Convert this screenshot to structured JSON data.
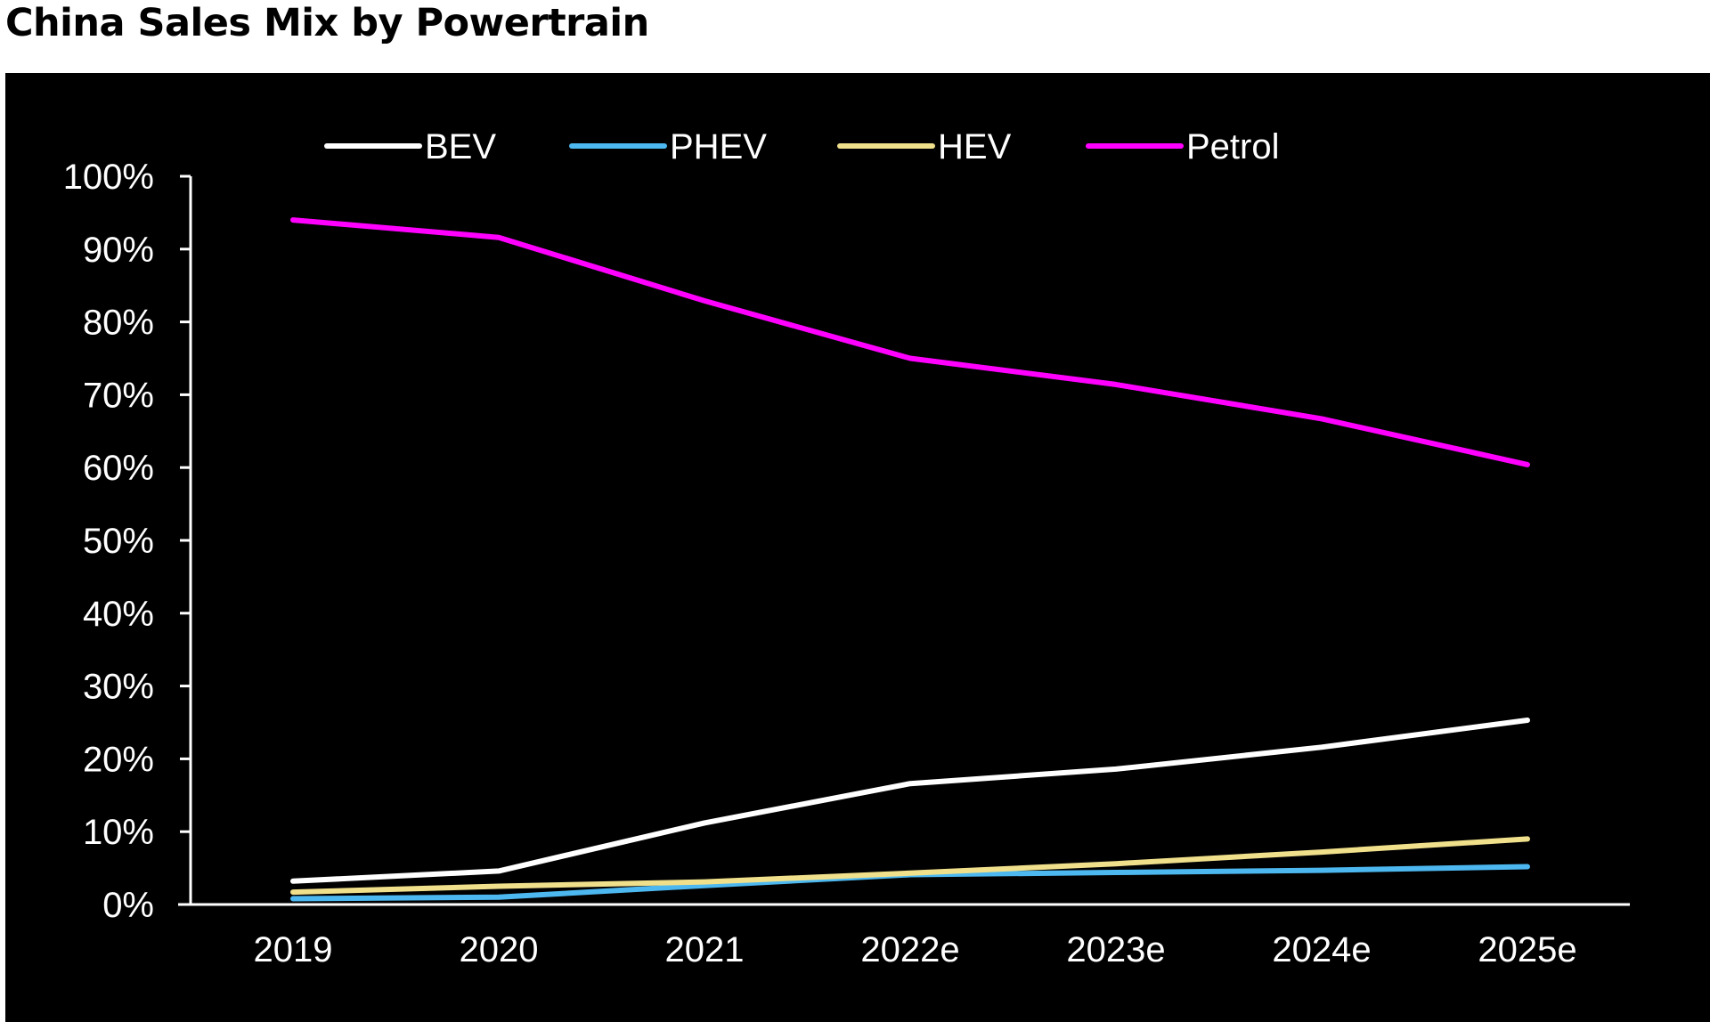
{
  "title": "China Sales Mix by Powertrain",
  "chart_data": {
    "type": "line",
    "title": "China Sales Mix by Powertrain",
    "xlabel": "",
    "ylabel": "",
    "categories": [
      "2019",
      "2020",
      "2021",
      "2022e",
      "2023e",
      "2024e",
      "2025e"
    ],
    "ylim": [
      0,
      100
    ],
    "y_ticks": [
      "0%",
      "10%",
      "20%",
      "30%",
      "40%",
      "50%",
      "60%",
      "70%",
      "80%",
      "90%",
      "100%"
    ],
    "grid": false,
    "legend_position": "top",
    "background": "#000000",
    "series": [
      {
        "name": "BEV",
        "color": "#ffffff",
        "values": [
          3.2,
          4.6,
          11.2,
          16.6,
          18.6,
          21.6,
          25.3
        ]
      },
      {
        "name": "PHEV",
        "color": "#4db8f0",
        "values": [
          0.8,
          1.0,
          2.6,
          4.1,
          4.4,
          4.7,
          5.2
        ]
      },
      {
        "name": "HEV",
        "color": "#f0e08c",
        "values": [
          1.7,
          2.5,
          3.1,
          4.3,
          5.6,
          7.2,
          9.0
        ]
      },
      {
        "name": "Petrol",
        "color": "#ff00ff",
        "values": [
          94.0,
          91.6,
          82.9,
          75.0,
          71.4,
          66.7,
          60.4
        ]
      }
    ]
  }
}
